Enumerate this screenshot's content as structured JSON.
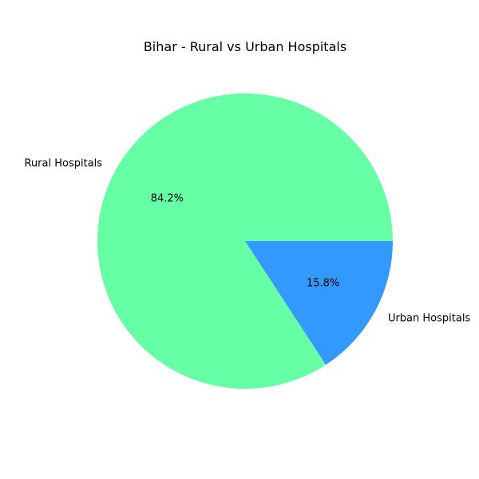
{
  "chart_data": {
    "type": "pie",
    "title": "Bihar - Rural vs Urban Hospitals",
    "slices": [
      {
        "label": "Rural Hospitals",
        "value": 84.2,
        "pct_label": "84.2%",
        "color": "#66ffa6"
      },
      {
        "label": "Urban Hospitals",
        "value": 15.8,
        "pct_label": "15.8%",
        "color": "#3399ff"
      }
    ]
  }
}
